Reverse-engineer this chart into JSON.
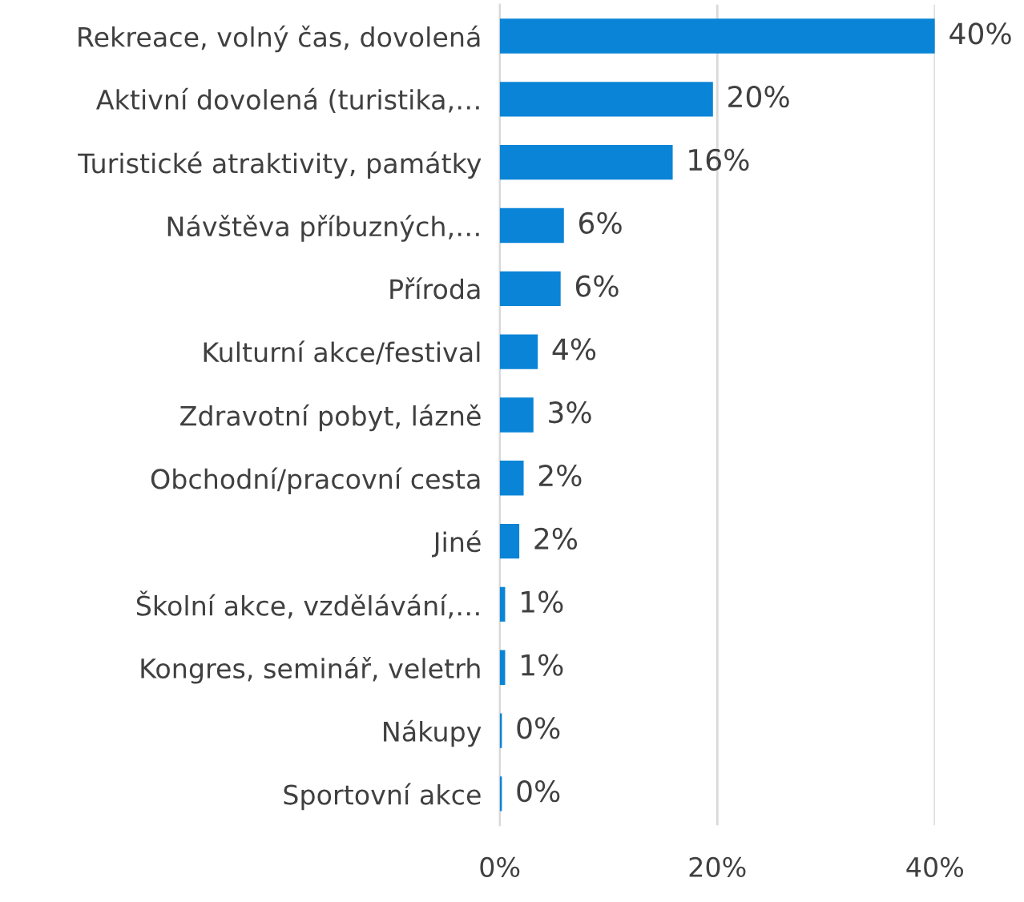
{
  "chart_data": {
    "type": "bar",
    "orientation": "horizontal",
    "categories": [
      "Rekreace, volný čas, dovolená",
      "Aktivní dovolená (turistika,…",
      "Turistické atraktivity, památky",
      "Návštěva příbuzných,…",
      "Příroda",
      "Kulturní akce/festival",
      "Zdravotní pobyt, lázně",
      "Obchodní/pracovní cesta",
      "Jiné",
      "Školní akce, vzdělávání,…",
      "Kongres, seminář, veletrh",
      "Nákupy",
      "Sportovní akce"
    ],
    "values": [
      40,
      19.6,
      15.9,
      5.9,
      5.6,
      3.5,
      3.1,
      2.2,
      1.8,
      0.5,
      0.5,
      0.2,
      0.2
    ],
    "value_labels": [
      "40%",
      "20%",
      "16%",
      "6%",
      "6%",
      "4%",
      "3%",
      "2%",
      "2%",
      "1%",
      "1%",
      "0%",
      "0%"
    ],
    "color": "#0a84d6",
    "xlim": [
      0,
      40
    ],
    "xticks": [
      {
        "value": 0,
        "label": "0%"
      },
      {
        "value": 20,
        "label": "20%"
      },
      {
        "value": 40,
        "label": "40%"
      }
    ],
    "grid": "x"
  }
}
